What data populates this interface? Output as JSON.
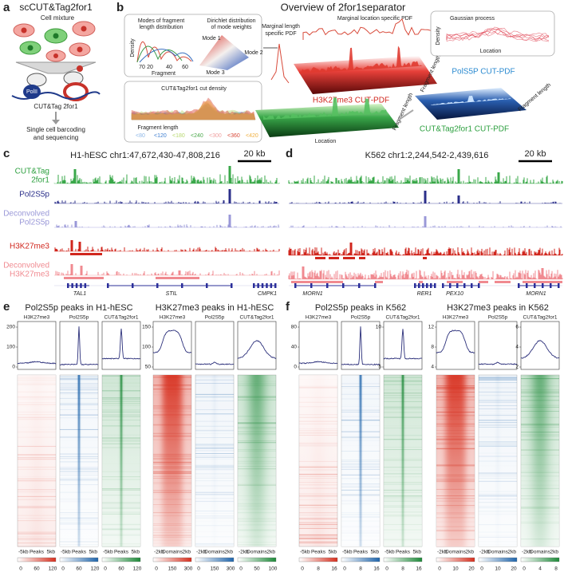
{
  "panel_a": {
    "letter": "a",
    "title": "scCUT&Tag2for1",
    "cell_mixture": "Cell mixture",
    "polii": "PolII",
    "method": "CUT&Tag 2for1",
    "output": [
      "Single cell barcoding",
      "and sequencing"
    ]
  },
  "panel_b": {
    "letter": "b",
    "title": "Overview of 2for1separator",
    "modes": {
      "title": [
        "Modes of fragment",
        "length distribution"
      ],
      "y_label": "Density",
      "x_label": "Fragment",
      "ticks": [
        70,
        20,
        40,
        60
      ]
    },
    "dirichlet": {
      "title": [
        "Dirichlet distribution",
        "of mode weights"
      ],
      "modes": [
        "Mode 1",
        "Mode 2",
        "Mode 3"
      ]
    },
    "cut_density": {
      "title": "CUT&Tag2for1 cut density",
      "x_label": "Fragment length",
      "legend": [
        "<80",
        "<120",
        "<180",
        "<240",
        "<300",
        "<360",
        "<420"
      ]
    },
    "marginal_length": [
      "Marginal length",
      "specific PDF"
    ],
    "marginal_location": "Marginal location specific PDF",
    "gaussian": {
      "title": "Gaussian process",
      "y_label": "Density",
      "x_label": "Location"
    },
    "surfaces": {
      "h3k27me3": "H3K27me3 CUT-PDF",
      "pol": "PolS5P CUT-PDF",
      "cuttag": "CUT&Tag2for1 CUT-PDF",
      "location": "Location",
      "fragment_length": [
        "Fragment length",
        "Fragment length",
        "Fragment length"
      ]
    }
  },
  "panel_c": {
    "letter": "c",
    "title": "H1-hESC chr1:47,672,430-47,808,216",
    "scale": "20 kb",
    "tracks": [
      [
        "CUT&Tag",
        "2for1"
      ],
      [
        "Pol2S5p"
      ],
      [
        "Deconvolved",
        "Pol2S5p"
      ],
      [
        "H3K27me3"
      ],
      [
        "Deconvolved",
        "H3K27me3"
      ]
    ],
    "genes": [
      "TAL1",
      "STIL",
      "CMPK1"
    ]
  },
  "panel_d": {
    "letter": "d",
    "title": "K562 chr1:2,244,542-2,439,616",
    "scale": "20 kb",
    "genes": [
      "MORN1",
      "RER1",
      "PEX10",
      "MORN1"
    ]
  },
  "panel_e": {
    "letter": "e",
    "groups": [
      {
        "title": "Pol2S5p peaks in H1-hESC",
        "x_labels": [
          "-5kb",
          "Peaks",
          "5kb"
        ],
        "columns": [
          {
            "name": "H3K27me3",
            "yticks": [
              0,
              100,
              200
            ],
            "colorbar": [
              0,
              60,
              120
            ]
          },
          {
            "name": "Pol2S5p",
            "colorbar": [
              0,
              60,
              120
            ]
          },
          {
            "name": "CUT&Tag2for1",
            "colorbar": [
              0,
              60,
              120
            ]
          }
        ]
      },
      {
        "title": "H3K27me3 peaks in H1-hESC",
        "x_labels": [
          "-2kb",
          "Domains",
          "2kb"
        ],
        "columns": [
          {
            "name": "H3K27me3",
            "yticks": [
              50,
              100,
              150
            ],
            "colorbar": [
              0,
              150,
              300
            ]
          },
          {
            "name": "Pol2S5p",
            "colorbar": [
              0,
              150,
              300
            ]
          },
          {
            "name": "CUT&Tag2for1",
            "colorbar": [
              0,
              50,
              100
            ]
          }
        ]
      }
    ]
  },
  "panel_f": {
    "letter": "f",
    "groups": [
      {
        "title": "Pol2S5p peaks in K562",
        "x_labels": [
          "-5kb",
          "Peaks",
          "5kb"
        ],
        "columns": [
          {
            "name": "H3K27me3",
            "yticks": [
              0,
              40,
              80
            ],
            "colorbar": [
              0,
              8,
              16
            ]
          },
          {
            "name": "Pol2S5p",
            "colorbar": [
              0,
              8,
              16
            ]
          },
          {
            "name": "CUT&Tag2for1",
            "yticks": [
              5,
              10
            ],
            "colorbar": [
              0,
              8,
              16
            ]
          }
        ]
      },
      {
        "title": "H3K27me3 peaks in K562",
        "x_labels": [
          "-2kb",
          "Domains",
          "2kb"
        ],
        "columns": [
          {
            "name": "H3K27me3",
            "yticks": [
              4,
              8,
              12
            ],
            "colorbar": [
              0,
              10,
              20
            ]
          },
          {
            "name": "Pol2S5p",
            "colorbar": [
              0,
              10,
              20
            ]
          },
          {
            "name": "CUT&Tag2for1",
            "yticks": [
              2,
              4,
              6
            ],
            "colorbar": [
              0,
              4,
              8
            ]
          }
        ]
      }
    ]
  }
}
